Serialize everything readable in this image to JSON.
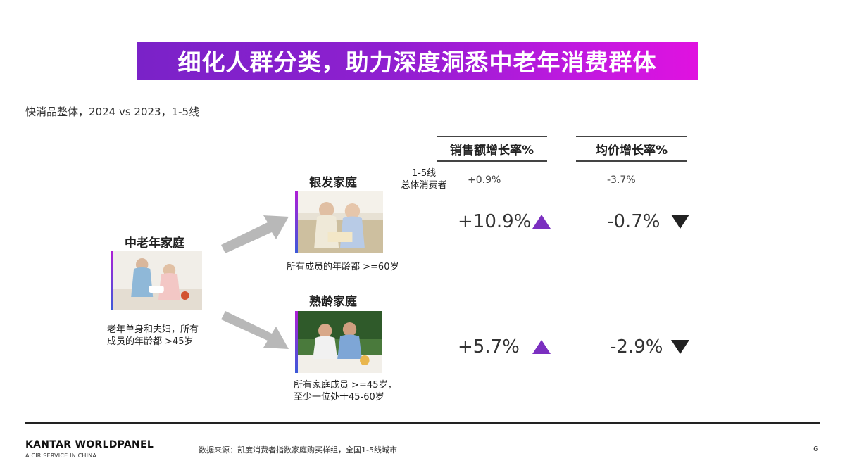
{
  "title": "细化人群分类，助力深度洞悉中老年消费群体",
  "subtitle": "快消品整体，2024 vs 2023，1-5线",
  "headers": {
    "sales_growth": "销售额增长率%",
    "avg_price_growth": "均价增长率%"
  },
  "overall": {
    "label_line1": "1-5线",
    "label_line2": "总体消费者",
    "sales_growth": "+0.9%",
    "avg_price_growth": "-3.7%"
  },
  "groups": {
    "main": {
      "title": "中老年家庭",
      "desc_line1": "老年单身和夫妇，所有",
      "desc_line2": "成员的年龄都 >45岁"
    },
    "silver": {
      "title": "银发家庭",
      "desc_line1": "所有成员的年龄都 >=60岁",
      "sales_growth": "+10.9%",
      "sales_direction": "up",
      "avg_price_growth": "-0.7%",
      "avg_price_direction": "down"
    },
    "mature": {
      "title": "熟龄家庭",
      "desc_line1": "所有家庭成员 >=45岁，",
      "desc_line2": "至少一位处于45-60岁",
      "sales_growth": "+5.7%",
      "sales_direction": "up",
      "avg_price_growth": "-2.9%",
      "avg_price_direction": "down"
    }
  },
  "colors": {
    "up_triangle": "#7b2fc0",
    "down_triangle": "#222222",
    "title_gradient_start": "#7a22c8",
    "title_gradient_end": "#e012e0",
    "arrow": "#b8b8b8"
  },
  "footer": {
    "brand": "KANTAR WORLDPANEL",
    "brand_sub": "A CIR SERVICE IN CHINA",
    "source": "数据来源：凯度消费者指数家庭购买样组，全国1-5线城市",
    "page": "6"
  }
}
